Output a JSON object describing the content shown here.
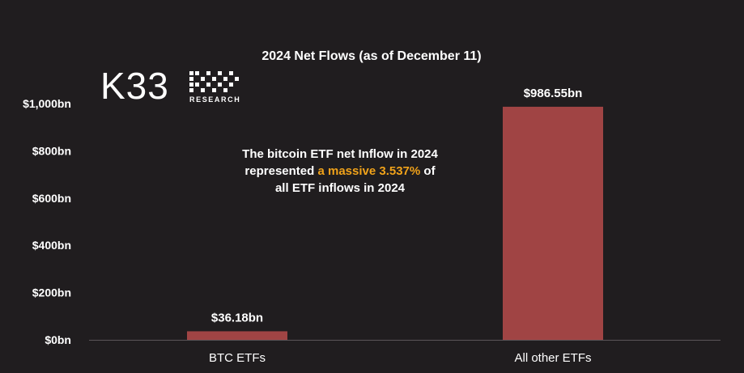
{
  "brand": {
    "name": "K33",
    "sub": "RESEARCH"
  },
  "annotation": {
    "line1": "The bitcoin ETF net Inflow in 2024",
    "line2_pre": "represented ",
    "line2_highlight": "a massive 3.537%",
    "line2_post": " of",
    "line3": "all ETF inflows in 2024"
  },
  "colors": {
    "background": "#201d1f",
    "bar": "#a04444",
    "highlight": "#f0a21a",
    "text": "#ffffff"
  },
  "chart_data": {
    "type": "bar",
    "title": "2024 Net Flows  (as of December 11)",
    "categories": [
      "BTC ETFs",
      "All other ETFs"
    ],
    "values": [
      36.18,
      986.55
    ],
    "data_labels": [
      "$36.18bn",
      "$986.55bn"
    ],
    "xlabel": "",
    "ylabel": "",
    "ylim": [
      0,
      1000
    ],
    "yticks": [
      0,
      200,
      400,
      600,
      800,
      1000
    ],
    "ytick_labels": [
      "$0bn",
      "$200bn",
      "$400bn",
      "$600bn",
      "$800bn",
      "$1,000bn"
    ],
    "grid": false
  }
}
